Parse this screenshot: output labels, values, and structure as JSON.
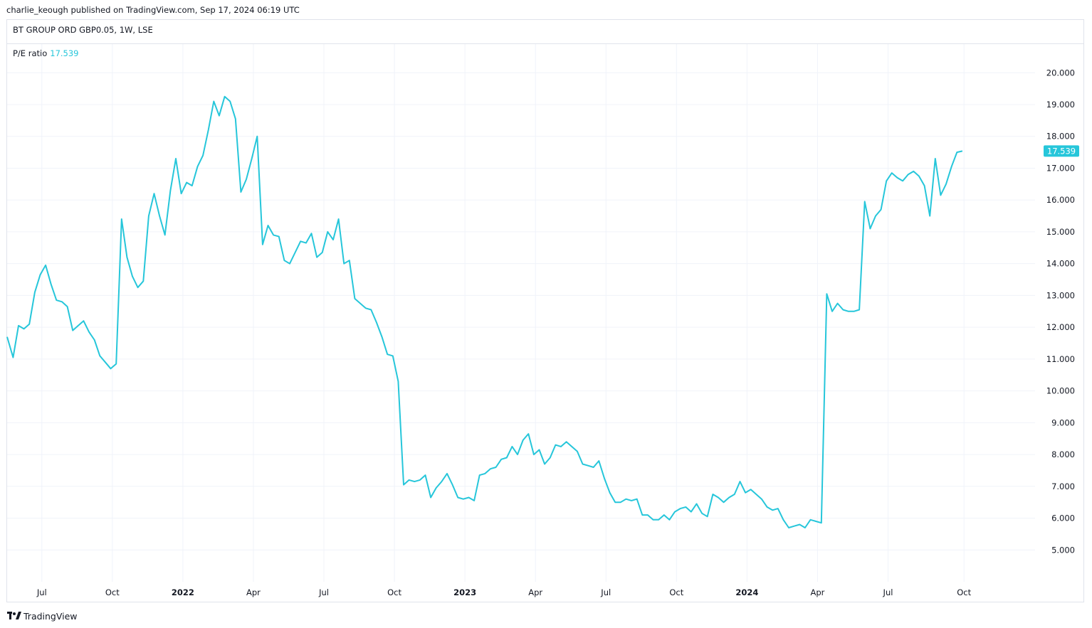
{
  "publisher_line": "charlie_keough published on TradingView.com, Sep 17, 2024 06:19 UTC",
  "symbol_line": "BT GROUP ORD GBP0.05, 1W, LSE",
  "legend": {
    "label": "P/E ratio",
    "value": "17.539"
  },
  "last_value_badge": "17.539",
  "footer": {
    "brand": "TradingView",
    "icon": "tradingview-logo-icon"
  },
  "colors": {
    "line": "#26c6da",
    "grid": "#f0f3fa",
    "badge": "#26c6da"
  },
  "chart_data": {
    "type": "line",
    "series": [
      {
        "values": [
          [
            -6.0,
            11.7
          ],
          [
            -4.9,
            11.05
          ],
          [
            -3.9,
            12.05
          ],
          [
            -2.9,
            11.95
          ],
          [
            -1.9,
            12.1
          ],
          [
            -0.9,
            13.1
          ],
          [
            0.1,
            13.65
          ],
          [
            1.1,
            13.95
          ],
          [
            2.1,
            13.35
          ],
          [
            3.1,
            12.85
          ],
          [
            4.1,
            12.8
          ],
          [
            5.1,
            12.65
          ],
          [
            6.1,
            11.9
          ],
          [
            7.1,
            12.05
          ],
          [
            8.1,
            12.2
          ],
          [
            9.1,
            11.85
          ],
          [
            10.1,
            11.6
          ],
          [
            11.1,
            11.1
          ],
          [
            12.1,
            10.9
          ],
          [
            13.1,
            10.7
          ],
          [
            14.1,
            10.85
          ],
          [
            15.1,
            15.4
          ],
          [
            16.1,
            14.2
          ],
          [
            17.1,
            13.6
          ],
          [
            18.1,
            13.25
          ],
          [
            19.1,
            13.45
          ],
          [
            20.1,
            15.5
          ],
          [
            21.1,
            16.2
          ],
          [
            22.1,
            15.5
          ],
          [
            23.1,
            14.9
          ],
          [
            24.1,
            16.3
          ],
          [
            25.1,
            17.3
          ],
          [
            26.1,
            16.2
          ],
          [
            27.1,
            16.55
          ],
          [
            28.1,
            16.45
          ],
          [
            29.1,
            17.05
          ],
          [
            30.1,
            17.4
          ],
          [
            31.1,
            18.2
          ],
          [
            32.1,
            19.1
          ],
          [
            33.1,
            18.65
          ],
          [
            34.1,
            19.25
          ],
          [
            35.1,
            19.1
          ],
          [
            36.1,
            18.55
          ],
          [
            37.1,
            16.25
          ],
          [
            38.1,
            16.65
          ],
          [
            39.1,
            17.3
          ],
          [
            40.1,
            18.0
          ],
          [
            41.1,
            14.6
          ],
          [
            42.1,
            15.2
          ],
          [
            43.1,
            14.9
          ],
          [
            44.1,
            14.85
          ],
          [
            45.1,
            14.1
          ],
          [
            46.1,
            14.0
          ],
          [
            47.1,
            14.35
          ],
          [
            48.1,
            14.7
          ],
          [
            49.1,
            14.65
          ],
          [
            50.1,
            14.95
          ],
          [
            51.1,
            14.2
          ],
          [
            52.1,
            14.35
          ],
          [
            53.1,
            15.0
          ],
          [
            54.1,
            14.75
          ],
          [
            55.1,
            15.4
          ],
          [
            56.1,
            14.0
          ],
          [
            57.1,
            14.1
          ],
          [
            58.1,
            12.9
          ],
          [
            59.1,
            12.75
          ],
          [
            60.1,
            12.6
          ],
          [
            61.1,
            12.55
          ],
          [
            62.1,
            12.15
          ],
          [
            63.1,
            11.7
          ],
          [
            64.1,
            11.15
          ],
          [
            65.1,
            11.1
          ],
          [
            66.1,
            10.3
          ],
          [
            67.1,
            7.05
          ],
          [
            68.1,
            7.2
          ],
          [
            69.1,
            7.15
          ],
          [
            70.1,
            7.2
          ],
          [
            71.1,
            7.35
          ],
          [
            72.1,
            6.65
          ],
          [
            73.1,
            6.95
          ],
          [
            74.1,
            7.15
          ],
          [
            75.1,
            7.4
          ],
          [
            76.1,
            7.05
          ],
          [
            77.1,
            6.65
          ],
          [
            78.1,
            6.6
          ],
          [
            79.1,
            6.65
          ],
          [
            80.1,
            6.55
          ],
          [
            81.1,
            7.35
          ],
          [
            82.1,
            7.4
          ],
          [
            83.1,
            7.55
          ],
          [
            84.1,
            7.6
          ],
          [
            85.1,
            7.85
          ],
          [
            86.1,
            7.9
          ],
          [
            87.1,
            8.25
          ],
          [
            88.1,
            8.0
          ],
          [
            89.1,
            8.45
          ],
          [
            90.1,
            8.65
          ],
          [
            91.1,
            8.0
          ],
          [
            92.1,
            8.15
          ],
          [
            93.1,
            7.7
          ],
          [
            94.1,
            7.9
          ],
          [
            95.1,
            8.3
          ],
          [
            96.1,
            8.25
          ],
          [
            97.1,
            8.4
          ],
          [
            98.1,
            8.25
          ],
          [
            99.1,
            8.1
          ],
          [
            100.1,
            7.7
          ],
          [
            101.1,
            7.65
          ],
          [
            102.1,
            7.6
          ],
          [
            103.1,
            7.8
          ],
          [
            104.1,
            7.25
          ],
          [
            105.1,
            6.8
          ],
          [
            106.1,
            6.5
          ],
          [
            107.1,
            6.5
          ],
          [
            108.1,
            6.6
          ],
          [
            109.1,
            6.55
          ],
          [
            110.1,
            6.6
          ],
          [
            111.1,
            6.1
          ],
          [
            112.1,
            6.1
          ],
          [
            113.1,
            5.95
          ],
          [
            114.1,
            5.95
          ],
          [
            115.1,
            6.1
          ],
          [
            116.1,
            5.95
          ],
          [
            117.1,
            6.2
          ],
          [
            118.1,
            6.3
          ],
          [
            119.1,
            6.35
          ],
          [
            120.1,
            6.2
          ],
          [
            121.1,
            6.45
          ],
          [
            122.1,
            6.15
          ],
          [
            123.1,
            6.05
          ],
          [
            124.1,
            6.75
          ],
          [
            125.1,
            6.65
          ],
          [
            126.1,
            6.5
          ],
          [
            127.1,
            6.65
          ],
          [
            128.1,
            6.75
          ],
          [
            129.1,
            7.15
          ],
          [
            130.1,
            6.8
          ],
          [
            131.1,
            6.9
          ],
          [
            132.1,
            6.75
          ],
          [
            133.1,
            6.6
          ],
          [
            134.1,
            6.35
          ],
          [
            135.1,
            6.25
          ],
          [
            136.1,
            6.3
          ],
          [
            137.1,
            5.95
          ],
          [
            138.1,
            5.7
          ],
          [
            139.1,
            5.75
          ],
          [
            140.1,
            5.8
          ],
          [
            141.1,
            5.7
          ],
          [
            142.1,
            5.95
          ],
          [
            143.1,
            5.9
          ],
          [
            144.1,
            5.85
          ],
          [
            145.1,
            13.05
          ],
          [
            146.1,
            12.5
          ],
          [
            147.1,
            12.75
          ],
          [
            148.1,
            12.55
          ],
          [
            149.1,
            12.5
          ],
          [
            150.1,
            12.5
          ],
          [
            151.1,
            12.55
          ],
          [
            152.1,
            15.95
          ],
          [
            153.1,
            15.1
          ],
          [
            154.1,
            15.5
          ],
          [
            155.1,
            15.7
          ],
          [
            156.1,
            16.6
          ],
          [
            157.1,
            16.85
          ],
          [
            158.1,
            16.7
          ],
          [
            159.1,
            16.6
          ],
          [
            160.1,
            16.8
          ],
          [
            161.1,
            16.9
          ],
          [
            162.1,
            16.75
          ],
          [
            163.1,
            16.45
          ],
          [
            164.1,
            15.5
          ],
          [
            165.1,
            17.3
          ],
          [
            166.1,
            16.15
          ],
          [
            167.1,
            16.5
          ],
          [
            168.1,
            17.05
          ],
          [
            169.1,
            17.5
          ],
          [
            170.1,
            17.539
          ]
        ]
      }
    ],
    "x_ticks": [
      {
        "label": "Jul",
        "pos": 0.4,
        "bold": false
      },
      {
        "label": "Oct",
        "pos": 13.4,
        "bold": false
      },
      {
        "label": "2022",
        "pos": 26.4,
        "bold": true
      },
      {
        "label": "Apr",
        "pos": 39.4,
        "bold": false
      },
      {
        "label": "Jul",
        "pos": 52.4,
        "bold": false
      },
      {
        "label": "Oct",
        "pos": 65.4,
        "bold": false
      },
      {
        "label": "2023",
        "pos": 78.4,
        "bold": true
      },
      {
        "label": "Apr",
        "pos": 91.4,
        "bold": false
      },
      {
        "label": "Jul",
        "pos": 104.4,
        "bold": false
      },
      {
        "label": "Oct",
        "pos": 117.4,
        "bold": false
      },
      {
        "label": "2024",
        "pos": 130.4,
        "bold": true
      },
      {
        "label": "Apr",
        "pos": 143.4,
        "bold": false
      },
      {
        "label": "Jul",
        "pos": 156.4,
        "bold": false
      },
      {
        "label": "Oct",
        "pos": 170.4,
        "bold": false
      }
    ],
    "y_ticks": [
      "5.000",
      "6.000",
      "7.000",
      "8.000",
      "9.000",
      "10.000",
      "11.000",
      "12.000",
      "13.000",
      "14.000",
      "15.000",
      "16.000",
      "17.000",
      "18.000",
      "19.000",
      "20.000"
    ],
    "y_tick_values": [
      5,
      6,
      7,
      8,
      9,
      10,
      11,
      12,
      13,
      14,
      15,
      16,
      17,
      18,
      19,
      20
    ],
    "xlim": [
      -6.0,
      183.5
    ],
    "ylim": [
      4.0,
      20.9
    ],
    "grid": true,
    "y_axis_side": "right"
  }
}
